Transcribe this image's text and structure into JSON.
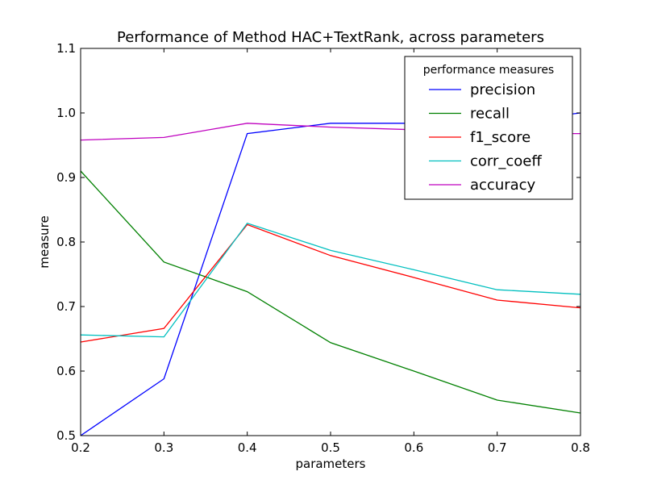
{
  "chart_data": {
    "type": "line",
    "title": "Performance of Method HAC+TextRank, across parameters",
    "xlabel": "parameters",
    "ylabel": "measure",
    "xlim": [
      0.2,
      0.8
    ],
    "ylim": [
      0.5,
      1.1
    ],
    "xticks": [
      "0.2",
      "0.3",
      "0.4",
      "0.5",
      "0.6",
      "0.7",
      "0.8"
    ],
    "yticks": [
      "0.5",
      "0.6",
      "0.7",
      "0.8",
      "0.9",
      "1.0",
      "1.1"
    ],
    "x": [
      0.2,
      0.3,
      0.4,
      0.5,
      0.6,
      0.7,
      0.8
    ],
    "grid": false,
    "legend": {
      "title": "performance measures",
      "placement": "top-right"
    },
    "series": [
      {
        "name": "precision",
        "color": "#0000ff",
        "values": [
          0.5,
          0.588,
          0.968,
          0.984,
          0.984,
          0.984,
          1.0
        ]
      },
      {
        "name": "recall",
        "color": "#008000",
        "values": [
          0.91,
          0.769,
          0.723,
          0.644,
          0.6,
          0.555,
          0.535
        ]
      },
      {
        "name": "f1_score",
        "color": "#ff0000",
        "values": [
          0.645,
          0.666,
          0.827,
          0.779,
          0.745,
          0.71,
          0.698
        ]
      },
      {
        "name": "corr_coeff",
        "color": "#00bfbf",
        "values": [
          0.656,
          0.653,
          0.829,
          0.787,
          0.757,
          0.726,
          0.719
        ]
      },
      {
        "name": "accuracy",
        "color": "#bf00bf",
        "values": [
          0.958,
          0.962,
          0.984,
          0.978,
          0.974,
          0.968,
          0.968
        ]
      }
    ]
  }
}
